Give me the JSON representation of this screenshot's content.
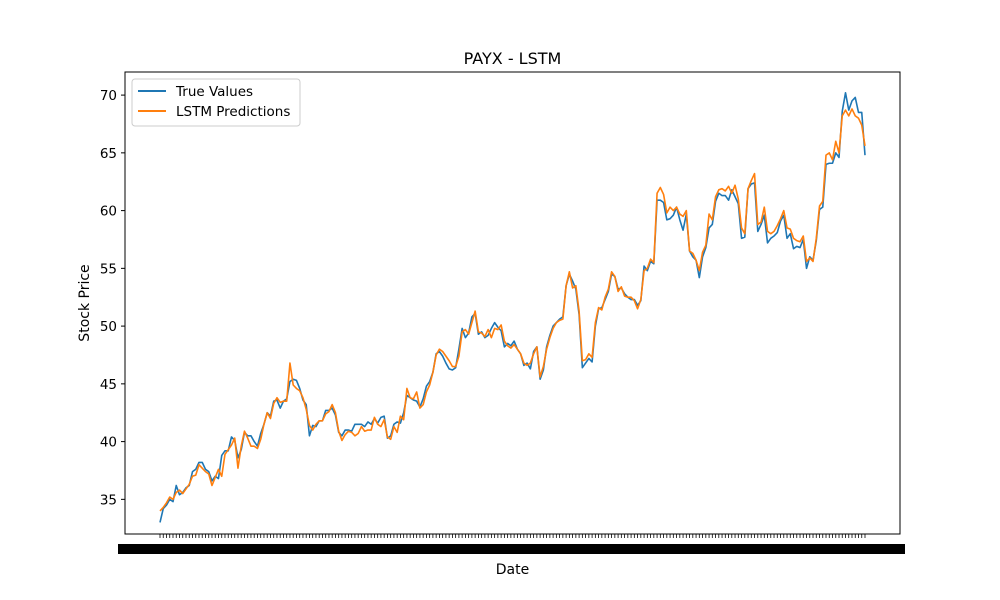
{
  "chart_data": {
    "type": "line",
    "title": "PAYX - LSTM",
    "xlabel": "Date",
    "ylabel": "Stock Price",
    "ylim": [
      32.0,
      72.0
    ],
    "yticks": [
      35,
      40,
      45,
      50,
      55,
      60,
      65,
      70
    ],
    "grid": false,
    "legend_position": "top-left",
    "series": [
      {
        "name": "True Values",
        "color": "#1f77b4",
        "values": [
          33.0,
          34.2,
          34.5,
          35.0,
          34.8,
          36.2,
          35.4,
          35.6,
          36.0,
          36.2,
          37.4,
          37.6,
          38.2,
          38.2,
          37.6,
          37.4,
          36.6,
          37.0,
          36.8,
          38.8,
          39.2,
          39.2,
          40.4,
          40.1,
          38.6,
          39.3,
          40.8,
          40.5,
          40.5,
          40.0,
          39.6,
          40.7,
          41.5,
          42.5,
          42.2,
          43.5,
          43.6,
          42.9,
          43.5,
          43.7,
          45.2,
          45.4,
          45.3,
          44.6,
          43.6,
          43.2,
          40.5,
          41.4,
          41.3,
          41.8,
          41.8,
          42.7,
          42.7,
          42.9,
          42.3,
          40.8,
          40.5,
          41.0,
          41.0,
          40.9,
          41.5,
          41.5,
          41.5,
          41.3,
          41.7,
          41.5,
          42.0,
          41.6,
          42.1,
          42.2,
          40.3,
          40.5,
          41.5,
          41.7,
          41.6,
          42.5,
          44.0,
          43.8,
          43.6,
          43.5,
          43.0,
          43.7,
          44.8,
          45.2,
          46.0,
          47.6,
          47.8,
          47.4,
          46.8,
          46.3,
          46.2,
          46.4,
          48.0,
          49.8,
          49.0,
          49.4,
          50.8,
          51.1,
          49.3,
          49.5,
          49.0,
          49.2,
          49.8,
          50.3,
          49.9,
          49.6,
          48.2,
          48.5,
          48.3,
          48.7,
          48.0,
          47.6,
          46.6,
          46.8,
          46.3,
          47.8,
          48.2,
          45.4,
          46.2,
          48.2,
          49.2,
          50.0,
          50.3,
          50.6,
          50.8,
          53.5,
          54.5,
          53.9,
          53.2,
          51.0,
          46.4,
          46.8,
          47.2,
          46.9,
          50.0,
          51.5,
          51.6,
          52.3,
          53.0,
          54.5,
          54.3,
          53.2,
          53.3,
          52.8,
          52.5,
          52.3,
          52.3,
          51.8,
          52.2,
          55.2,
          54.8,
          55.6,
          55.4,
          60.9,
          60.9,
          60.7,
          59.2,
          59.3,
          59.6,
          60.3,
          59.2,
          58.3,
          59.7,
          56.5,
          56.0,
          55.7,
          54.2,
          56.0,
          56.8,
          58.5,
          58.8,
          60.8,
          61.5,
          61.3,
          61.3,
          60.9,
          61.8,
          61.2,
          60.6,
          57.6,
          57.7,
          61.9,
          62.3,
          62.4,
          58.2,
          58.8,
          59.6,
          57.2,
          57.6,
          57.8,
          58.1,
          59.1,
          59.6,
          57.6,
          58.0,
          56.7,
          56.9,
          56.8,
          57.5,
          55.0,
          56.0,
          55.7,
          57.4,
          60.1,
          60.3,
          64.0,
          64.1,
          64.1,
          65.0,
          64.6,
          68.6,
          70.2,
          68.7,
          69.5,
          69.8,
          68.5,
          68.5,
          64.8
        ]
      },
      {
        "name": "LSTM Predictions",
        "color": "#ff7f0e",
        "values": [
          34.0,
          34.3,
          34.7,
          35.2,
          35.0,
          35.6,
          35.8,
          35.5,
          35.9,
          36.3,
          37.0,
          37.1,
          38.0,
          37.7,
          37.4,
          37.2,
          36.2,
          36.9,
          37.6,
          37.0,
          38.9,
          39.3,
          39.7,
          40.3,
          37.7,
          39.6,
          40.9,
          40.3,
          39.6,
          39.6,
          39.4,
          40.2,
          41.5,
          42.5,
          42.0,
          43.3,
          43.8,
          43.4,
          43.5,
          43.5,
          46.8,
          44.9,
          44.6,
          44.4,
          43.8,
          42.8,
          41.4,
          41.0,
          41.5,
          41.8,
          41.8,
          42.4,
          42.6,
          43.2,
          42.5,
          40.9,
          40.1,
          40.6,
          40.9,
          40.8,
          40.5,
          40.7,
          41.3,
          40.9,
          41.0,
          41.0,
          42.1,
          41.5,
          41.3,
          41.9,
          40.4,
          40.2,
          41.3,
          40.8,
          42.2,
          41.9,
          44.6,
          43.8,
          43.7,
          44.3,
          42.9,
          43.2,
          44.3,
          44.9,
          46.0,
          47.5,
          48.0,
          47.8,
          47.4,
          47.0,
          46.5,
          46.5,
          47.4,
          49.5,
          49.7,
          49.3,
          50.3,
          51.3,
          49.5,
          49.4,
          49.1,
          49.7,
          49.0,
          49.8,
          49.7,
          50.1,
          48.7,
          48.3,
          48.1,
          48.4,
          48.0,
          47.6,
          46.8,
          46.6,
          46.8,
          47.6,
          48.2,
          45.6,
          46.5,
          48.0,
          49.0,
          49.8,
          50.3,
          50.5,
          50.6,
          53.5,
          54.7,
          53.3,
          53.5,
          51.3,
          47.0,
          47.1,
          47.6,
          47.3,
          50.3,
          51.6,
          51.4,
          52.5,
          53.2,
          54.7,
          54.3,
          53.0,
          53.4,
          52.6,
          52.5,
          52.5,
          52.2,
          51.5,
          52.3,
          54.8,
          55.0,
          55.8,
          55.5,
          61.5,
          62.0,
          61.4,
          59.8,
          60.3,
          60.0,
          60.3,
          59.7,
          59.5,
          60.0,
          56.5,
          56.3,
          55.7,
          54.8,
          56.4,
          57.0,
          59.7,
          59.2,
          61.2,
          61.8,
          61.9,
          61.7,
          62.1,
          61.5,
          62.2,
          61.0,
          58.5,
          58.0,
          61.9,
          62.6,
          63.2,
          58.8,
          59.0,
          60.3,
          58.2,
          58.0,
          58.2,
          58.7,
          59.3,
          60.0,
          58.5,
          58.4,
          57.6,
          57.4,
          57.3,
          57.8,
          55.6,
          55.9,
          55.6,
          57.6,
          60.4,
          60.8,
          64.8,
          65.0,
          64.4,
          66.0,
          65.0,
          68.2,
          68.7,
          68.2,
          68.8,
          68.2,
          68.0,
          67.4,
          65.6
        ]
      }
    ]
  }
}
